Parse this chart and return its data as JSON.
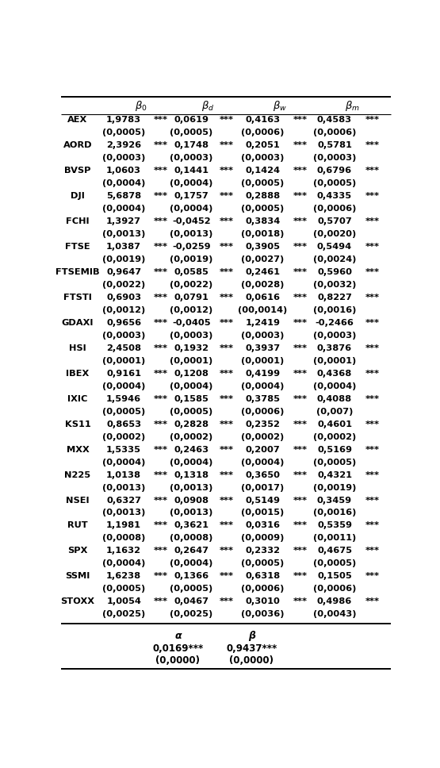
{
  "col_headers": [
    "β_0",
    "β_d",
    "β_w",
    "β_m"
  ],
  "rows": [
    [
      "AEX",
      "1,9783",
      "***",
      "0,0619",
      "***",
      "0,4163",
      "***",
      "0,4583",
      "***"
    ],
    [
      "",
      "(0,0005)",
      "",
      "(0,0005)",
      "",
      "(0,0006)",
      "",
      "(0,0006)",
      ""
    ],
    [
      "AORD",
      "2,3926",
      "***",
      "0,1748",
      "***",
      "0,2051",
      "***",
      "0,5781",
      "***"
    ],
    [
      "",
      "(0,0003)",
      "",
      "(0,0003)",
      "",
      "(0,0003)",
      "",
      "(0,0003)",
      ""
    ],
    [
      "BVSP",
      "1,0603",
      "***",
      "0,1441",
      "***",
      "0,1424",
      "***",
      "0,6796",
      "***"
    ],
    [
      "",
      "(0,0004)",
      "",
      "(0,0004)",
      "",
      "(0,0005)",
      "",
      "(0,0005)",
      ""
    ],
    [
      "DJI",
      "5,6878",
      "***",
      "0,1757",
      "***",
      "0,2888",
      "***",
      "0,4335",
      "***"
    ],
    [
      "",
      "(0,0004)",
      "",
      "(0,0004)",
      "",
      "(0,0005)",
      "",
      "(0,0006)",
      ""
    ],
    [
      "FCHI",
      "1,3927",
      "***",
      "-0,0452",
      "***",
      "0,3834",
      "***",
      "0,5707",
      "***"
    ],
    [
      "",
      "(0,0013)",
      "",
      "(0,0013)",
      "",
      "(0,0018)",
      "",
      "(0,0020)",
      ""
    ],
    [
      "FTSE",
      "1,0387",
      "***",
      "-0,0259",
      "***",
      "0,3905",
      "***",
      "0,5494",
      "***"
    ],
    [
      "",
      "(0,0019)",
      "",
      "(0,0019)",
      "",
      "(0,0027)",
      "",
      "(0,0024)",
      ""
    ],
    [
      "FTSEMIB",
      "0,9647",
      "***",
      "0,0585",
      "***",
      "0,2461",
      "***",
      "0,5960",
      "***"
    ],
    [
      "",
      "(0,0022)",
      "",
      "(0,0022)",
      "",
      "(0,0028)",
      "",
      "(0,0032)",
      ""
    ],
    [
      "FTSTI",
      "0,6903",
      "***",
      "0,0791",
      "***",
      "0,0616",
      "***",
      "0,8227",
      "***"
    ],
    [
      "",
      "(0,0012)",
      "",
      "(0,0012)",
      "",
      "(00,0014)",
      "",
      "(0,0016)",
      ""
    ],
    [
      "GDAXI",
      "0,9656",
      "***",
      "-0,0405",
      "***",
      "1,2419",
      "***",
      "-0,2466",
      "***"
    ],
    [
      "",
      "(0,0003)",
      "",
      "(0,0003)",
      "",
      "(0,0003)",
      "",
      "(0,0003)",
      ""
    ],
    [
      "HSI",
      "2,4508",
      "***",
      "0,1932",
      "***",
      "0,3937",
      "***",
      "0,3876",
      "***"
    ],
    [
      "",
      "(0,0001)",
      "",
      "(0,0001)",
      "",
      "(0,0001)",
      "",
      "(0,0001)",
      ""
    ],
    [
      "IBEX",
      "0,9161",
      "***",
      "0,1208",
      "***",
      "0,4199",
      "***",
      "0,4368",
      "***"
    ],
    [
      "",
      "(0,0004)",
      "",
      "(0,0004)",
      "",
      "(0,0004)",
      "",
      "(0,0004)",
      ""
    ],
    [
      "IXIC",
      "1,5946",
      "***",
      "0,1585",
      "***",
      "0,3785",
      "***",
      "0,4088",
      "***"
    ],
    [
      "",
      "(0,0005)",
      "",
      "(0,0005)",
      "",
      "(0,0006)",
      "",
      "(0,007)",
      ""
    ],
    [
      "KS11",
      "0,8653",
      "***",
      "0,2828",
      "***",
      "0,2352",
      "***",
      "0,4601",
      "***"
    ],
    [
      "",
      "(0,0002)",
      "",
      "(0,0002)",
      "",
      "(0,0002)",
      "",
      "(0,0002)",
      ""
    ],
    [
      "MXX",
      "1,5335",
      "***",
      "0,2463",
      "***",
      "0,2007",
      "***",
      "0,5169",
      "***"
    ],
    [
      "",
      "(0,0004)",
      "",
      "(0,0004)",
      "",
      "(0,0004)",
      "",
      "(0,0005)",
      ""
    ],
    [
      "N225",
      "1,0138",
      "***",
      "0,1318",
      "***",
      "0,3650",
      "***",
      "0,4321",
      "***"
    ],
    [
      "",
      "(0,0013)",
      "",
      "(0,0013)",
      "",
      "(0,0017)",
      "",
      "(0,0019)",
      ""
    ],
    [
      "NSEI",
      "0,6327",
      "***",
      "0,0908",
      "***",
      "0,5149",
      "***",
      "0,3459",
      "***"
    ],
    [
      "",
      "(0,0013)",
      "",
      "(0,0013)",
      "",
      "(0,0015)",
      "",
      "(0,0016)",
      ""
    ],
    [
      "RUT",
      "1,1981",
      "***",
      "0,3621",
      "***",
      "0,0316",
      "***",
      "0,5359",
      "***"
    ],
    [
      "",
      "(0,0008)",
      "",
      "(0,0008)",
      "",
      "(0,0009)",
      "",
      "(0,0011)",
      ""
    ],
    [
      "SPX",
      "1,1632",
      "***",
      "0,2647",
      "***",
      "0,2332",
      "***",
      "0,4675",
      "***"
    ],
    [
      "",
      "(0,0004)",
      "",
      "(0,0004)",
      "",
      "(0,0005)",
      "",
      "(0,0005)",
      ""
    ],
    [
      "SSMI",
      "1,6238",
      "***",
      "0,1366",
      "***",
      "0,6318",
      "***",
      "0,1505",
      "***"
    ],
    [
      "",
      "(0,0005)",
      "",
      "(0,0005)",
      "",
      "(0,0006)",
      "",
      "(0,0006)",
      ""
    ],
    [
      "STOXX",
      "1,0054",
      "***",
      "0,0467",
      "***",
      "0,3010",
      "***",
      "0,4986",
      "***"
    ],
    [
      "",
      "(0,0025)",
      "",
      "(0,0025)",
      "",
      "(0,0036)",
      "",
      "(0,0043)",
      ""
    ]
  ],
  "footer_alpha_label": "α",
  "footer_beta_label": "β",
  "footer_alpha_val": "0,0169***",
  "footer_beta_val": "0,9437***",
  "footer_alpha_se": "(0,0000)",
  "footer_beta_se": "(0,0000)",
  "font_size_data": 8.2,
  "font_size_header": 9.5,
  "font_size_footer_label": 9.0,
  "font_size_footer_val": 8.5,
  "line_color": "#000000",
  "text_color": "#000000",
  "bg_color": "#ffffff"
}
